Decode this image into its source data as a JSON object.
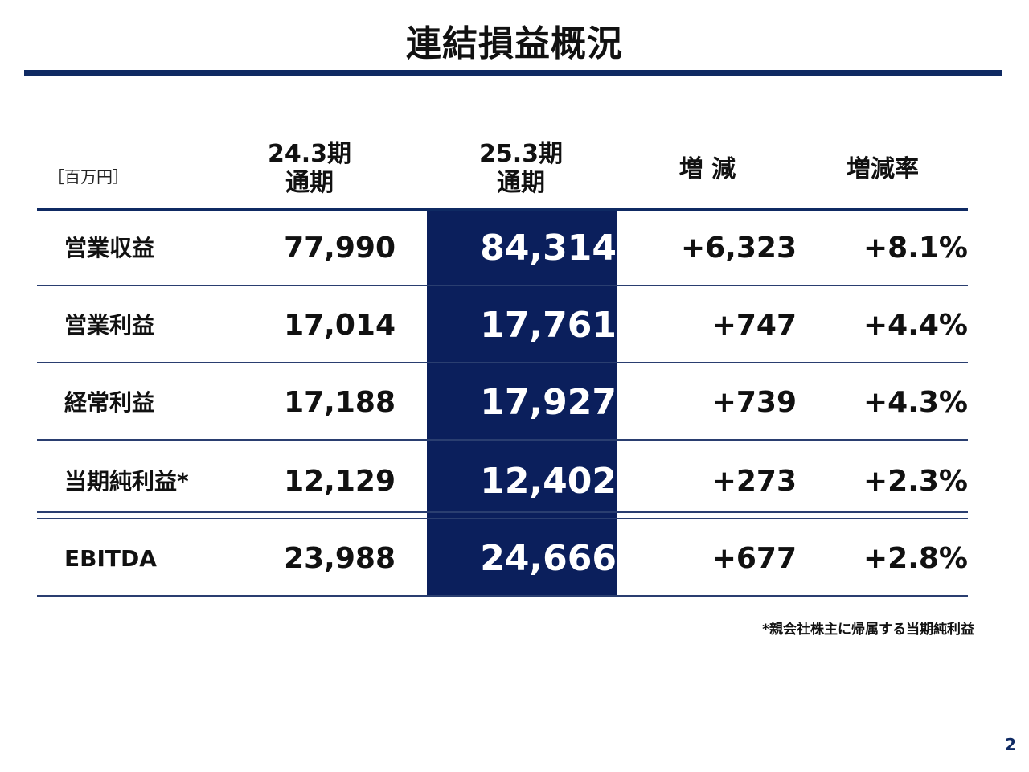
{
  "title": "連結損益概況",
  "unit": "［百万円］",
  "headers": {
    "prev": {
      "line1": "24.3期",
      "line2": "通期"
    },
    "curr": {
      "line1": "25.3期",
      "line2": "通期"
    },
    "change": "増 減",
    "rate": "増減率"
  },
  "rows": [
    {
      "label": "営業収益",
      "prev": "77,990",
      "curr": "84,314",
      "change": "+6,323",
      "rate": "+8.1%"
    },
    {
      "label": "営業利益",
      "prev": "17,014",
      "curr": "17,761",
      "change": "+747",
      "rate": "+4.4%"
    },
    {
      "label": "経常利益",
      "prev": "17,188",
      "curr": "17,927",
      "change": "+739",
      "rate": "+4.3%"
    },
    {
      "label": "当期純利益*",
      "prev": "12,129",
      "curr": "12,402",
      "change": "+273",
      "rate": "+2.3%"
    },
    {
      "label": "EBITDA",
      "prev": "23,988",
      "curr": "24,666",
      "change": "+677",
      "rate": "+2.8%"
    }
  ],
  "footnote": "*親会社株主に帰属する当期純利益",
  "page_number": "2",
  "colors": {
    "accent": "#0b1f5c",
    "rule": "#0f2a63"
  }
}
